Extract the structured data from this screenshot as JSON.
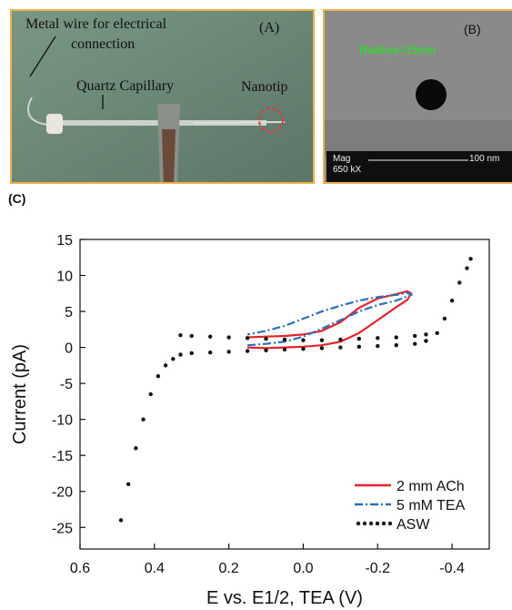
{
  "panel_a": {
    "label": "(A)",
    "wire_line1": "Metal wire for electrical",
    "wire_line2": "connection",
    "capillary": "Quartz Capillary",
    "nanotip": "Nanotip"
  },
  "panel_b": {
    "label": "(B)",
    "radius": "Radius=15nm",
    "mag_label": "Mag",
    "mag_value": "650 kX",
    "scale": "100 nm"
  },
  "panel_c_label": "(C)",
  "colors": {
    "ach": "#e8232a",
    "tea": "#2a6fbf",
    "asw": "#111111",
    "frame": "#f0b04a"
  },
  "chart_data": {
    "type": "line",
    "xlabel": "E vs. E1/2, TEA (V)",
    "ylabel": "Current (pA)",
    "xlim": [
      0.6,
      -0.5
    ],
    "ylim": [
      -28,
      15
    ],
    "xticks": [
      0.6,
      0.4,
      0.2,
      0.0,
      -0.2,
      -0.4
    ],
    "xtick_labels": [
      "0.6",
      "0.4",
      "0.2",
      "0.0",
      "-0.2",
      "-0.4"
    ],
    "yticks": [
      15,
      10,
      5,
      0,
      -5,
      -10,
      -15,
      -20,
      -25
    ],
    "ytick_labels": [
      "15",
      "10",
      "5",
      "0",
      "-5",
      "-10",
      "-15",
      "-20",
      "-25"
    ],
    "legend_position": "bottom-right",
    "series": [
      {
        "name": "2 mm ACh",
        "style": "solid",
        "color": "#e8232a",
        "x": [
          0.15,
          0.1,
          0.05,
          0.0,
          -0.05,
          -0.1,
          -0.15,
          -0.2,
          -0.25,
          -0.28,
          -0.29,
          -0.28,
          -0.25,
          -0.2,
          -0.15,
          -0.1,
          -0.05,
          0.0,
          0.05,
          0.1,
          0.15
        ],
        "y": [
          0.0,
          -0.1,
          0.0,
          0.1,
          0.3,
          0.8,
          2.0,
          3.8,
          5.6,
          6.6,
          7.5,
          7.8,
          7.4,
          6.8,
          5.5,
          3.5,
          2.3,
          1.8,
          1.6,
          1.5,
          1.4
        ]
      },
      {
        "name": "5 mM TEA",
        "style": "dashdot",
        "color": "#2a6fbf",
        "x": [
          0.15,
          0.1,
          0.05,
          0.0,
          -0.05,
          -0.1,
          -0.15,
          -0.2,
          -0.25,
          -0.29,
          -0.28,
          -0.25,
          -0.2,
          -0.15,
          -0.1,
          -0.05,
          0.0,
          0.05,
          0.1,
          0.15
        ],
        "y": [
          0.3,
          0.5,
          0.8,
          1.5,
          2.6,
          3.8,
          5.0,
          5.9,
          6.5,
          7.3,
          7.6,
          7.3,
          7.0,
          6.5,
          5.8,
          5.0,
          4.0,
          3.0,
          2.3,
          1.8
        ]
      },
      {
        "name": "ASW",
        "style": "dotted",
        "color": "#111111",
        "x": [
          0.49,
          0.47,
          0.45,
          0.43,
          0.41,
          0.39,
          0.37,
          0.35,
          0.33,
          0.3,
          0.25,
          0.2,
          0.15,
          0.1,
          0.05,
          0.0,
          -0.05,
          -0.1,
          -0.15,
          -0.2,
          -0.25,
          -0.3,
          -0.33,
          -0.36,
          -0.38,
          -0.4,
          -0.42,
          -0.44,
          -0.45,
          -0.33,
          -0.3,
          -0.25,
          -0.2,
          -0.15,
          -0.1,
          -0.05,
          0.0,
          0.05,
          0.1,
          0.15,
          0.2,
          0.25,
          0.3,
          0.33
        ],
        "y": [
          -24.0,
          -19.0,
          -14.0,
          -10.0,
          -6.5,
          -4.0,
          -2.5,
          -1.6,
          -1.0,
          -0.8,
          -0.7,
          -0.6,
          -0.5,
          -0.4,
          -0.3,
          -0.2,
          -0.1,
          0.0,
          0.1,
          0.2,
          0.3,
          0.5,
          0.9,
          2.0,
          4.0,
          6.5,
          9.0,
          11.0,
          12.3,
          1.8,
          1.6,
          1.4,
          1.3,
          1.2,
          1.1,
          1.0,
          1.0,
          1.1,
          1.2,
          1.3,
          1.4,
          1.5,
          1.6,
          1.7
        ]
      }
    ]
  }
}
